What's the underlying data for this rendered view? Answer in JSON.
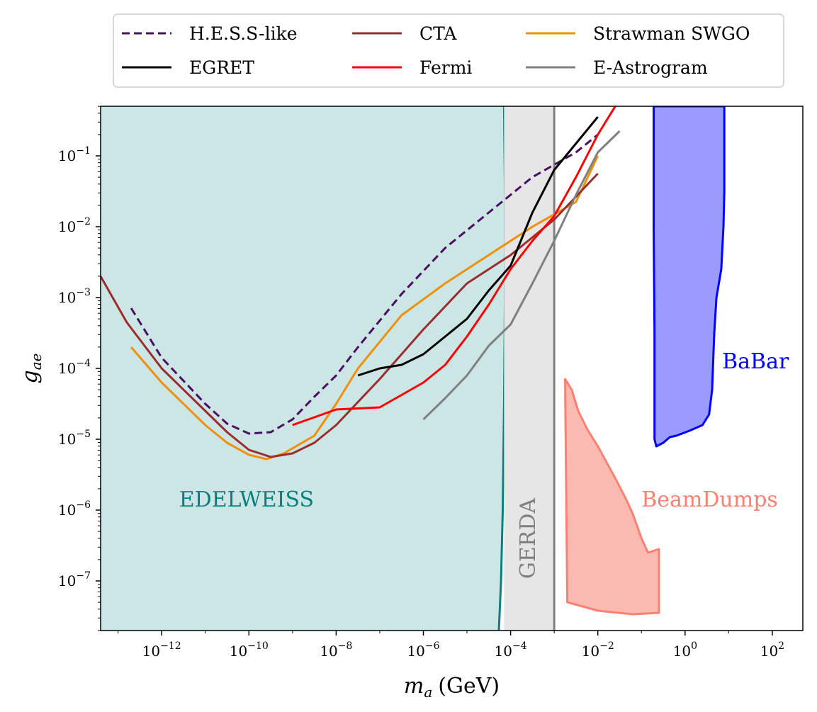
{
  "chart_data": {
    "type": "line",
    "title": "",
    "xlabel_main": "m",
    "xlabel_sub": "a",
    "xlabel_unit": "(GeV)",
    "ylabel_main": "g",
    "ylabel_sub": "ae",
    "xscale": "log",
    "yscale": "log",
    "xlim": [
      -13.4,
      2.7
    ],
    "ylim": [
      -7.7,
      -0.3
    ],
    "x_ticks": [
      {
        "base": "10",
        "exp": "−12",
        "value": -12
      },
      {
        "base": "10",
        "exp": "−10",
        "value": -10
      },
      {
        "base": "10",
        "exp": "−8",
        "value": -8
      },
      {
        "base": "10",
        "exp": "−6",
        "value": -6
      },
      {
        "base": "10",
        "exp": "−4",
        "value": -4
      },
      {
        "base": "10",
        "exp": "−2",
        "value": -2
      },
      {
        "base": "10",
        "exp": "0",
        "value": 0
      },
      {
        "base": "10",
        "exp": "2",
        "value": 2
      }
    ],
    "y_ticks": [
      {
        "base": "10",
        "exp": "−1",
        "value": -1
      },
      {
        "base": "10",
        "exp": "−2",
        "value": -2
      },
      {
        "base": "10",
        "exp": "−3",
        "value": -3
      },
      {
        "base": "10",
        "exp": "−4",
        "value": -4
      },
      {
        "base": "10",
        "exp": "−5",
        "value": -5
      },
      {
        "base": "10",
        "exp": "−6",
        "value": -6
      },
      {
        "base": "10",
        "exp": "−7",
        "value": -7
      }
    ],
    "legend": {
      "placement": "top-center",
      "entries": [
        {
          "label": "H.E.S.S-like",
          "color": "#4b0f64",
          "dashed": true
        },
        {
          "label": "EGRET",
          "color": "#000000",
          "dashed": false
        },
        {
          "label": "CTA",
          "color": "#9b2d2d",
          "dashed": false
        },
        {
          "label": "Fermi",
          "color": "#ff0000",
          "dashed": false
        },
        {
          "label": "Strawman SWGO",
          "color": "#f0900a",
          "dashed": false
        },
        {
          "label": "E-Astrogram",
          "color": "#808080",
          "dashed": false
        }
      ]
    },
    "regions": [
      {
        "name": "EDELWEISS",
        "label": "EDELWEISS",
        "fill": "#cce6e6",
        "edge": "#0a7f7f",
        "label_color": "#0a7f7f",
        "label_at": [
          -11.6,
          -5.85
        ],
        "boundary": [
          [
            -4.15,
            -0.3
          ],
          [
            -4.13,
            -1.5
          ],
          [
            -4.13,
            -3.0
          ],
          [
            -4.15,
            -4.5
          ],
          [
            -4.18,
            -6.0
          ],
          [
            -4.22,
            -7.0
          ],
          [
            -4.27,
            -7.7
          ]
        ]
      },
      {
        "name": "GERDA",
        "label": "GERDA",
        "fill": "#e6e6e6",
        "edge": "#808080",
        "label_color": "#808080",
        "x_range": [
          -4.15,
          -3.0
        ],
        "label_at": [
          -3.6,
          -6.4
        ]
      },
      {
        "name": "BaBar",
        "label": "BaBar",
        "fill": "#9b9bff",
        "edge": "#0000ff",
        "label_color": "#0000ff",
        "label_at": [
          0.85,
          -3.9
        ],
        "polygon": [
          [
            -0.72,
            -0.3
          ],
          [
            -0.72,
            -2.0
          ],
          [
            -0.7,
            -3.5
          ],
          [
            -0.7,
            -5.0
          ],
          [
            -0.66,
            -5.1
          ],
          [
            -0.5,
            -5.05
          ],
          [
            -0.35,
            -4.97
          ],
          [
            -0.2,
            -4.95
          ],
          [
            0.1,
            -4.88
          ],
          [
            0.4,
            -4.8
          ],
          [
            0.55,
            -4.65
          ],
          [
            0.62,
            -4.3
          ],
          [
            0.67,
            -3.5
          ],
          [
            0.72,
            -3.0
          ],
          [
            0.83,
            -2.6
          ],
          [
            0.88,
            -2.0
          ],
          [
            0.9,
            -1.5
          ],
          [
            0.9,
            -0.3
          ]
        ]
      },
      {
        "name": "BeamDumps",
        "label": "BeamDumps",
        "fill": "#fbbab1",
        "edge": "#fa8072",
        "label_color": "#fa8072",
        "label_at": [
          -1.0,
          -5.85
        ],
        "polygon": [
          [
            -2.75,
            -4.15
          ],
          [
            -2.6,
            -4.3
          ],
          [
            -2.45,
            -4.6
          ],
          [
            -2.25,
            -4.85
          ],
          [
            -2.0,
            -5.1
          ],
          [
            -1.6,
            -5.55
          ],
          [
            -1.35,
            -5.85
          ],
          [
            -1.2,
            -6.05
          ],
          [
            -1.0,
            -6.4
          ],
          [
            -0.85,
            -6.6
          ],
          [
            -0.6,
            -6.55
          ],
          [
            -0.6,
            -7.45
          ],
          [
            -1.2,
            -7.47
          ],
          [
            -2.0,
            -7.42
          ],
          [
            -2.7,
            -7.3
          ],
          [
            -2.75,
            -4.15
          ]
        ]
      }
    ],
    "series": [
      {
        "name": "Strawman SWGO",
        "color": "#f0900a",
        "dashed": false,
        "points": [
          [
            -12.7,
            -3.7
          ],
          [
            -12.0,
            -4.2
          ],
          [
            -11.0,
            -4.8
          ],
          [
            -10.5,
            -5.05
          ],
          [
            -10.0,
            -5.22
          ],
          [
            -9.6,
            -5.28
          ],
          [
            -9.2,
            -5.2
          ],
          [
            -8.5,
            -4.95
          ],
          [
            -8.0,
            -4.5
          ],
          [
            -7.5,
            -4.0
          ],
          [
            -6.5,
            -3.25
          ],
          [
            -5.5,
            -2.8
          ],
          [
            -4.5,
            -2.4
          ],
          [
            -3.5,
            -2.0
          ],
          [
            -2.5,
            -1.65
          ],
          [
            -2.0,
            -1.0
          ]
        ]
      },
      {
        "name": "CTA",
        "color": "#9b2d2d",
        "dashed": false,
        "points": [
          [
            -13.4,
            -2.7
          ],
          [
            -12.8,
            -3.35
          ],
          [
            -12.0,
            -4.0
          ],
          [
            -11.0,
            -4.6
          ],
          [
            -10.5,
            -4.9
          ],
          [
            -10.0,
            -5.15
          ],
          [
            -9.5,
            -5.25
          ],
          [
            -9.0,
            -5.2
          ],
          [
            -8.5,
            -5.05
          ],
          [
            -8.0,
            -4.8
          ],
          [
            -7.0,
            -4.15
          ],
          [
            -6.0,
            -3.45
          ],
          [
            -5.0,
            -2.8
          ],
          [
            -4.0,
            -2.4
          ],
          [
            -3.0,
            -1.9
          ],
          [
            -2.0,
            -1.25
          ]
        ]
      },
      {
        "name": "H.E.S.S-like",
        "color": "#4b0f64",
        "dashed": true,
        "points": [
          [
            -12.7,
            -3.15
          ],
          [
            -12.0,
            -3.85
          ],
          [
            -11.0,
            -4.5
          ],
          [
            -10.5,
            -4.78
          ],
          [
            -10.0,
            -4.92
          ],
          [
            -9.5,
            -4.9
          ],
          [
            -9.0,
            -4.72
          ],
          [
            -8.5,
            -4.4
          ],
          [
            -8.0,
            -4.1
          ],
          [
            -7.5,
            -3.7
          ],
          [
            -6.5,
            -2.95
          ],
          [
            -5.5,
            -2.3
          ],
          [
            -4.5,
            -1.8
          ],
          [
            -3.5,
            -1.3
          ],
          [
            -2.5,
            -0.95
          ],
          [
            -2.0,
            -0.7
          ]
        ]
      },
      {
        "name": "EGRET",
        "color": "#000000",
        "dashed": false,
        "points": [
          [
            -7.5,
            -4.1
          ],
          [
            -7.0,
            -4.0
          ],
          [
            -6.5,
            -3.95
          ],
          [
            -6.0,
            -3.8
          ],
          [
            -5.5,
            -3.55
          ],
          [
            -5.0,
            -3.3
          ],
          [
            -4.5,
            -2.9
          ],
          [
            -4.0,
            -2.55
          ],
          [
            -3.5,
            -1.8
          ],
          [
            -3.0,
            -1.2
          ],
          [
            -2.0,
            -0.45
          ]
        ]
      },
      {
        "name": "Fermi",
        "color": "#ff0000",
        "dashed": false,
        "points": [
          [
            -9.0,
            -4.8
          ],
          [
            -8.0,
            -4.58
          ],
          [
            -7.0,
            -4.55
          ],
          [
            -6.0,
            -4.2
          ],
          [
            -5.5,
            -3.95
          ],
          [
            -5.0,
            -3.55
          ],
          [
            -4.5,
            -3.1
          ],
          [
            -4.0,
            -2.6
          ],
          [
            -3.5,
            -2.2
          ],
          [
            -3.0,
            -1.85
          ],
          [
            -2.5,
            -1.3
          ],
          [
            -2.0,
            -0.7
          ],
          [
            -1.6,
            -0.3
          ]
        ]
      },
      {
        "name": "E-Astrogram",
        "color": "#808080",
        "dashed": false,
        "points": [
          [
            -6.0,
            -4.72
          ],
          [
            -5.5,
            -4.42
          ],
          [
            -5.0,
            -4.1
          ],
          [
            -4.5,
            -3.68
          ],
          [
            -4.0,
            -3.38
          ],
          [
            -3.5,
            -2.8
          ],
          [
            -3.0,
            -2.2
          ],
          [
            -2.5,
            -1.55
          ],
          [
            -2.0,
            -0.95
          ],
          [
            -1.5,
            -0.65
          ]
        ]
      }
    ]
  }
}
